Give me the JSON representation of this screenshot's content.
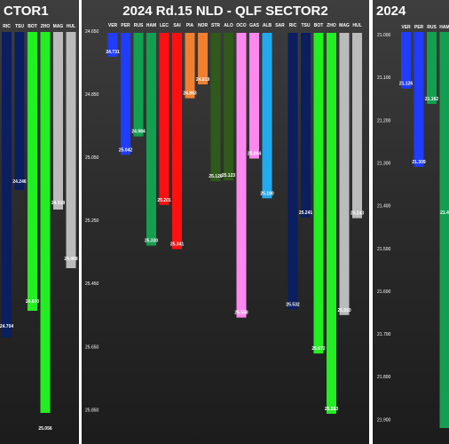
{
  "colors": {
    "VER": "#1f3cff",
    "PER": "#1f3cff",
    "RUS": "#12a050",
    "HAM": "#12a050",
    "LEC": "#ff1010",
    "SAI": "#ff1010",
    "PIA": "#f08030",
    "NOR": "#f08030",
    "STR": "#2f5a1a",
    "ALO": "#2f5a1a",
    "OCO": "#ff88f0",
    "GAS": "#ff88f0",
    "ALB": "#22aaee",
    "SAR": "#22aaee",
    "RIC": "#0a1e60",
    "TSU": "#0a1e60",
    "BOT": "#22ee22",
    "ZHO": "#22ee22",
    "MAG": "#bbbbbb",
    "HUL": "#bbbbbb"
  },
  "chart_data": [
    {
      "type": "bar",
      "title": "CTOR1",
      "categories": [
        "RIC",
        "TSU",
        "BOT",
        "ZHO",
        "MAG",
        "HUL"
      ],
      "values": [
        null,
        null,
        null,
        null,
        null,
        null
      ],
      "data_labels": [
        "24.704",
        "24.246",
        "24.630",
        "25.056",
        "24.318",
        "24.468"
      ],
      "label_y": [
        369,
        206,
        341,
        484,
        230,
        293
      ],
      "bar_bottom": [
        380,
        214,
        350,
        465,
        236,
        302
      ],
      "bar_top": 36
    },
    {
      "type": "bar",
      "title": "2024 Rd.15 NLD - QLF SECTOR2",
      "categories": [
        "VER",
        "PER",
        "RUS",
        "HAM",
        "LEC",
        "SAI",
        "PIA",
        "NOR",
        "STR",
        "ALO",
        "OCO",
        "GAS",
        "ALB",
        "SAR",
        "RIC",
        "TSU",
        "BOT",
        "ZHO",
        "MAG",
        "HUL"
      ],
      "values": [
        24.731,
        25.042,
        24.984,
        25.33,
        25.201,
        25.341,
        24.863,
        24.819,
        25.126,
        25.123,
        25.558,
        25.054,
        25.18,
        null,
        25.532,
        25.241,
        25.672,
        25.863,
        25.55,
        25.243
      ],
      "data_labels": [
        "24.731",
        "25.042",
        "24.984",
        "25.330",
        "25.201",
        "25.341",
        "24.863",
        "24.819",
        "25.126",
        "25.123",
        "25.558",
        "25.054",
        "25.180",
        "",
        "25.532",
        "25.241",
        "25.672",
        "25.863",
        "25.550",
        "25.243"
      ],
      "yticks": [
        "24.650",
        "24.850",
        "25.050",
        "25.250",
        "25.450",
        "25.650",
        "25.850"
      ],
      "ylim": [
        24.65,
        25.88
      ],
      "y_inverted": true
    },
    {
      "type": "bar",
      "title": "2024",
      "categories": [
        "VER",
        "PER",
        "RUS",
        "HAM"
      ],
      "values": [
        21.126,
        21.309,
        21.162,
        null
      ],
      "data_labels": [
        "21.126",
        "21.309",
        "21.162",
        "21.4"
      ],
      "yticks": [
        "21.000",
        "21.100",
        "21.200",
        "21.300",
        "21.400",
        "21.500",
        "21.600",
        "21.700",
        "21.800",
        "21.900"
      ],
      "ylim": [
        21.0,
        21.92
      ],
      "y_inverted": true
    }
  ]
}
